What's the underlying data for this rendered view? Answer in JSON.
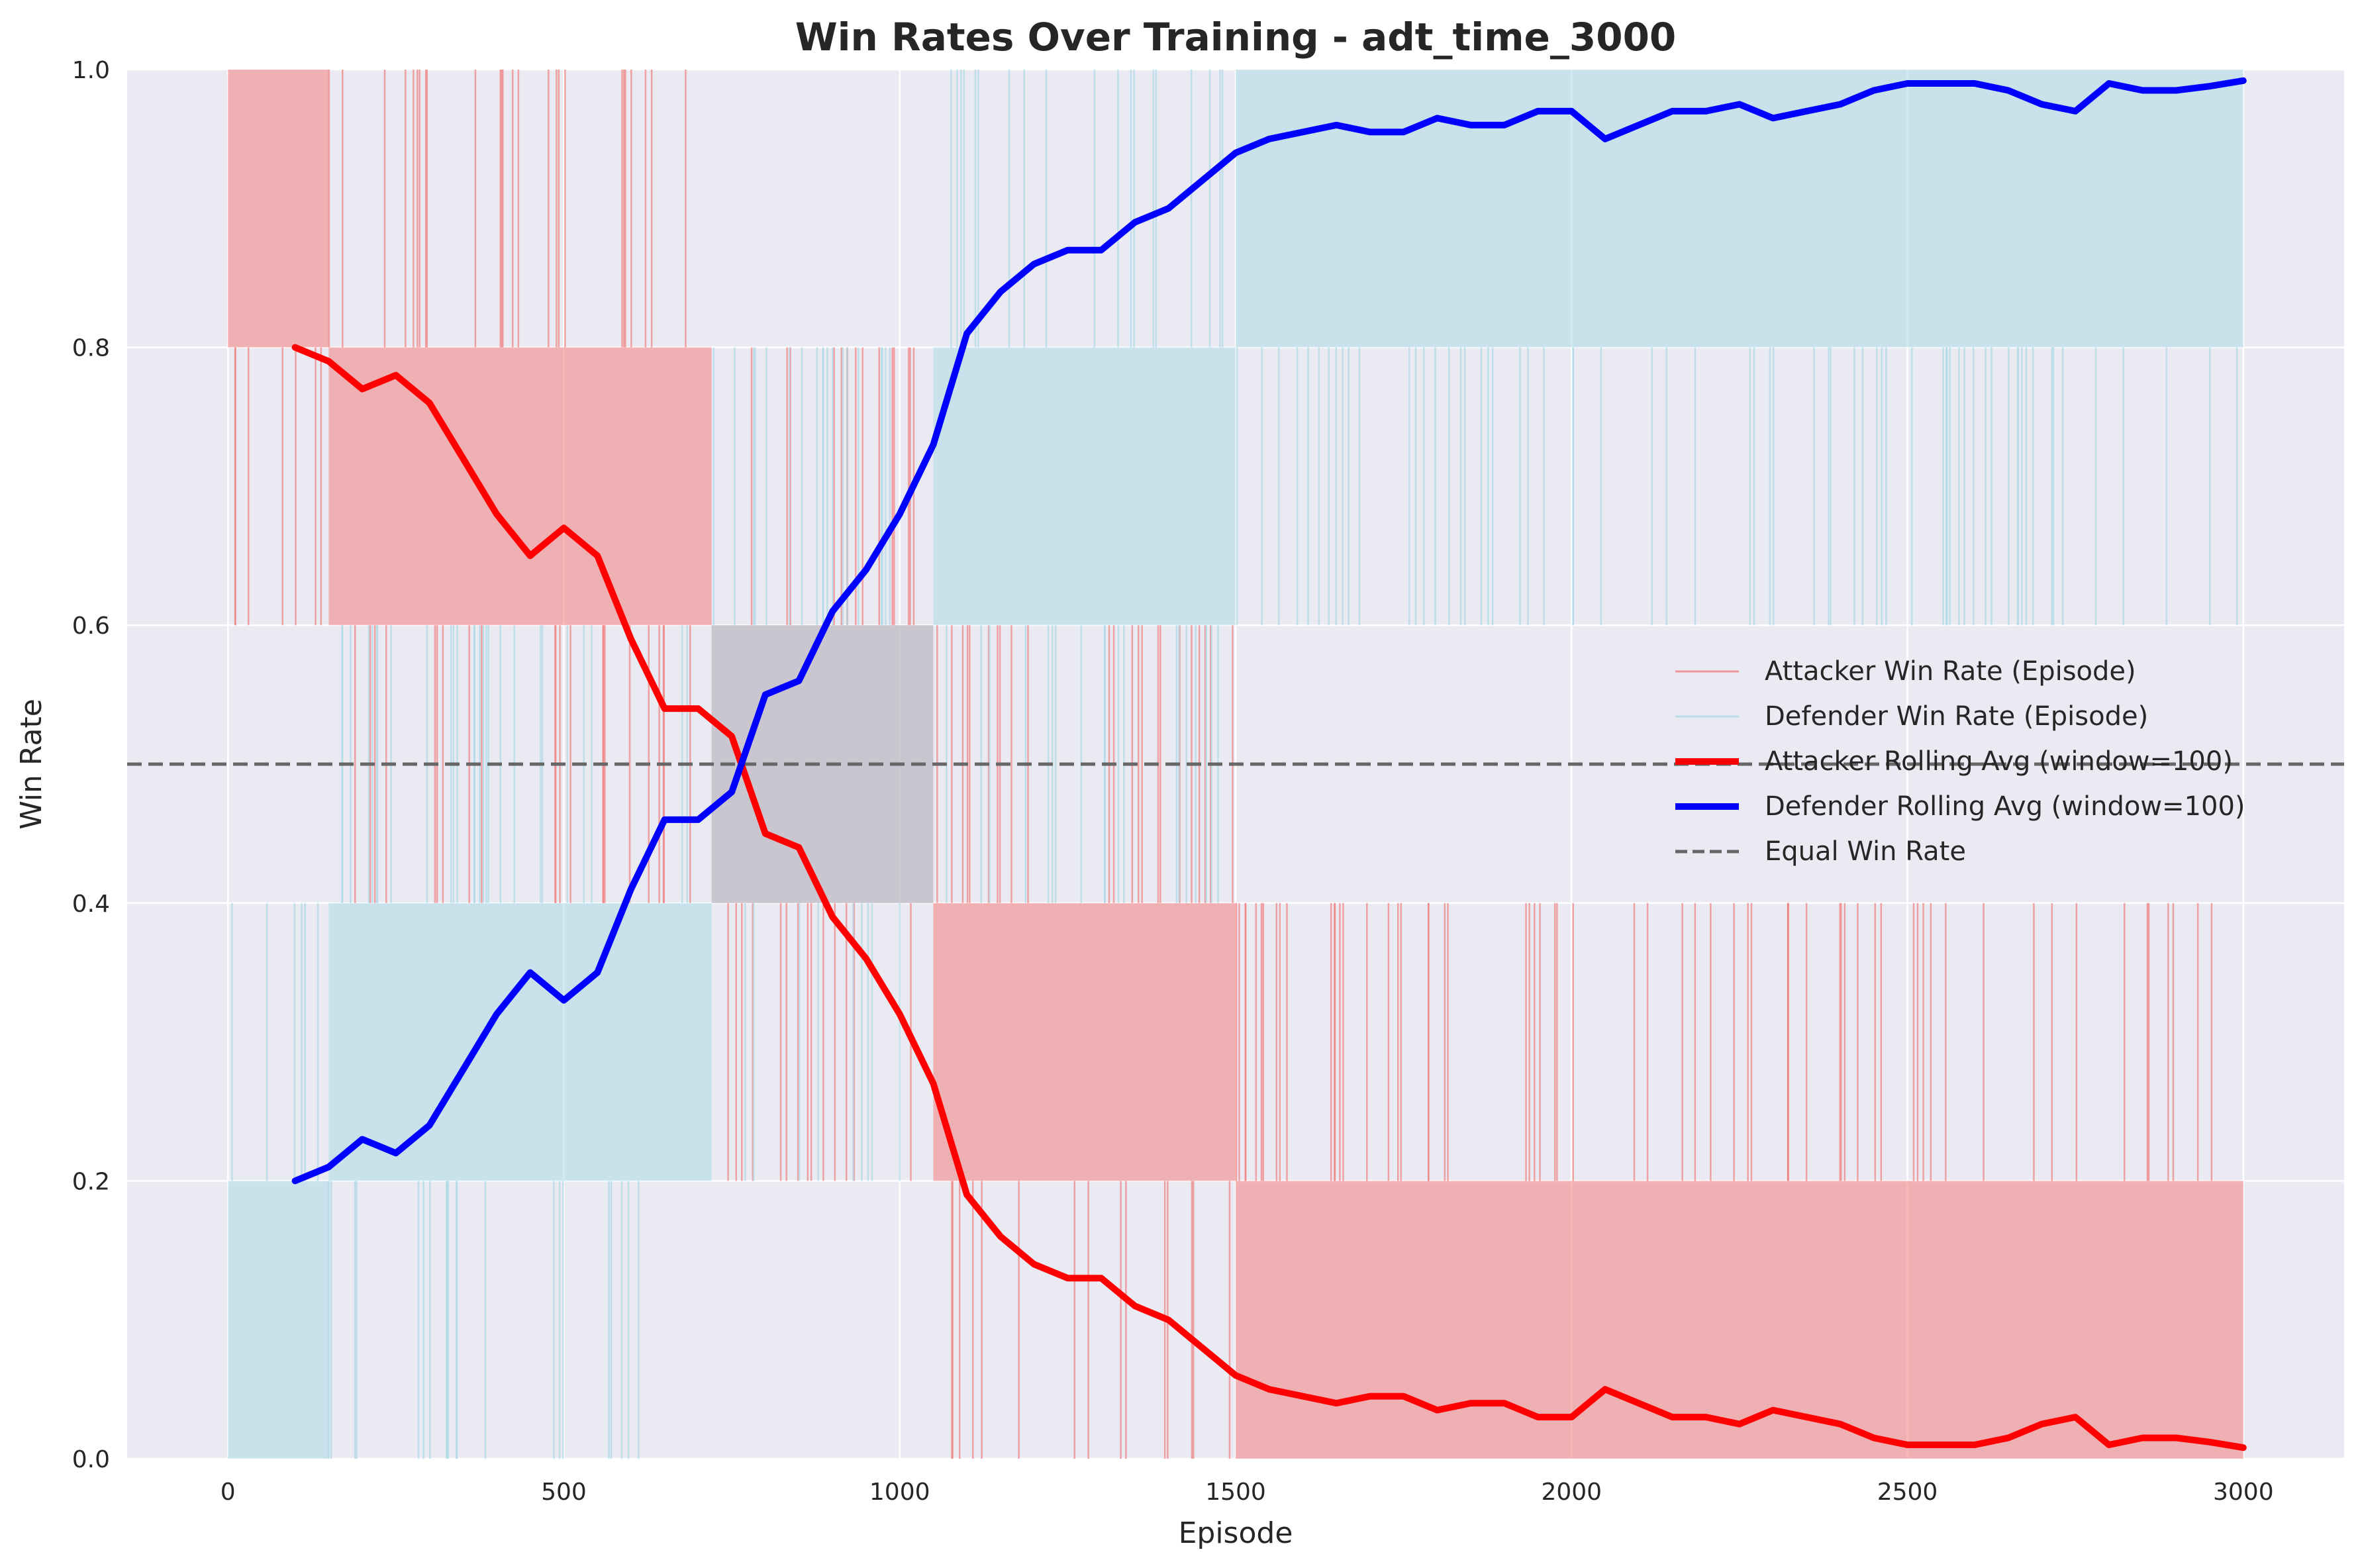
{
  "chart_data": {
    "type": "line",
    "title": "Win Rates Over Training - adt_time_3000",
    "xlabel": "Episode",
    "ylabel": "Win Rate",
    "xlim": [
      -150,
      3150
    ],
    "ylim": [
      0.0,
      1.0
    ],
    "x_ticks": [
      0,
      500,
      1000,
      1500,
      2000,
      2500,
      3000
    ],
    "y_ticks": [
      0.0,
      0.2,
      0.4,
      0.6,
      0.8,
      1.0
    ],
    "x_tick_labels": [
      "0",
      "500",
      "1000",
      "1500",
      "2000",
      "2500",
      "3000"
    ],
    "y_tick_labels": [
      "0.0",
      "0.2",
      "0.4",
      "0.6",
      "0.8",
      "1.0"
    ],
    "grid": true,
    "legend_position": "center-right",
    "reference_line": {
      "name": "Equal Win Rate",
      "y": 0.5,
      "style": "dashed",
      "color": "#666666"
    },
    "episode_series": [
      {
        "name": "Attacker Win Rate (Episode)",
        "color": "#f08080",
        "segments": [
          {
            "x_start": 0,
            "x_end": 150,
            "high": 1.0,
            "low": 0.8
          },
          {
            "x_start": 150,
            "x_end": 720,
            "high": 0.8,
            "low": 0.6
          },
          {
            "x_start": 720,
            "x_end": 1050,
            "high": 0.6,
            "low": 0.4
          },
          {
            "x_start": 1050,
            "x_end": 1500,
            "high": 0.4,
            "low": 0.2
          },
          {
            "x_start": 1500,
            "x_end": 3000,
            "high": 0.2,
            "low": 0.0
          }
        ]
      },
      {
        "name": "Defender Win Rate (Episode)",
        "color": "#add8e6",
        "segments": [
          {
            "x_start": 0,
            "x_end": 150,
            "high": 0.2,
            "low": 0.0
          },
          {
            "x_start": 150,
            "x_end": 720,
            "high": 0.4,
            "low": 0.2
          },
          {
            "x_start": 720,
            "x_end": 1050,
            "high": 0.6,
            "low": 0.4
          },
          {
            "x_start": 1050,
            "x_end": 1500,
            "high": 0.8,
            "low": 0.6
          },
          {
            "x_start": 1500,
            "x_end": 3000,
            "high": 1.0,
            "low": 0.8
          }
        ]
      }
    ],
    "rolling_x": [
      100,
      150,
      200,
      250,
      300,
      350,
      400,
      450,
      500,
      550,
      600,
      650,
      700,
      750,
      800,
      850,
      900,
      950,
      1000,
      1050,
      1100,
      1150,
      1200,
      1250,
      1300,
      1350,
      1400,
      1450,
      1500,
      1550,
      1600,
      1650,
      1700,
      1750,
      1800,
      1850,
      1900,
      1950,
      2000,
      2050,
      2100,
      2150,
      2200,
      2250,
      2300,
      2350,
      2400,
      2450,
      2500,
      2550,
      2600,
      2650,
      2700,
      2750,
      2800,
      2850,
      2900,
      2950,
      3000
    ],
    "series": [
      {
        "name": "Attacker Rolling Avg (window=100)",
        "color": "#ff0000",
        "values": [
          0.8,
          0.79,
          0.77,
          0.78,
          0.76,
          0.72,
          0.68,
          0.65,
          0.67,
          0.65,
          0.59,
          0.54,
          0.54,
          0.52,
          0.45,
          0.44,
          0.39,
          0.36,
          0.32,
          0.27,
          0.19,
          0.16,
          0.14,
          0.13,
          0.13,
          0.11,
          0.1,
          0.08,
          0.06,
          0.05,
          0.045,
          0.04,
          0.045,
          0.045,
          0.035,
          0.04,
          0.04,
          0.03,
          0.03,
          0.05,
          0.04,
          0.03,
          0.03,
          0.025,
          0.035,
          0.03,
          0.025,
          0.015,
          0.01,
          0.01,
          0.01,
          0.015,
          0.025,
          0.03,
          0.01,
          0.015,
          0.015,
          0.012,
          0.008
        ]
      },
      {
        "name": "Defender Rolling Avg (window=100)",
        "color": "#0000ff",
        "values": [
          0.2,
          0.21,
          0.23,
          0.22,
          0.24,
          0.28,
          0.32,
          0.35,
          0.33,
          0.35,
          0.41,
          0.46,
          0.46,
          0.48,
          0.55,
          0.56,
          0.61,
          0.64,
          0.68,
          0.73,
          0.81,
          0.84,
          0.86,
          0.87,
          0.87,
          0.89,
          0.9,
          0.92,
          0.94,
          0.95,
          0.955,
          0.96,
          0.955,
          0.955,
          0.965,
          0.96,
          0.96,
          0.97,
          0.97,
          0.95,
          0.96,
          0.97,
          0.97,
          0.975,
          0.965,
          0.97,
          0.975,
          0.985,
          0.99,
          0.99,
          0.99,
          0.985,
          0.975,
          0.97,
          0.99,
          0.985,
          0.985,
          0.988,
          0.992
        ]
      }
    ]
  }
}
